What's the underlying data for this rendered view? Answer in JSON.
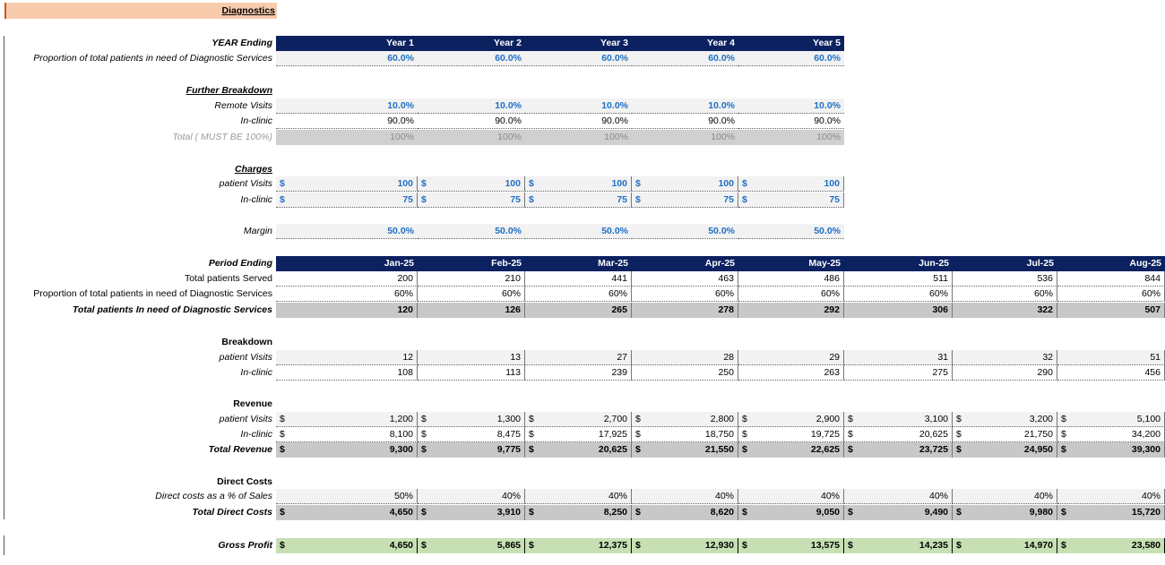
{
  "title": "Diagnostics",
  "section1": {
    "header_label": "YEAR Ending",
    "years": [
      "Year 1",
      "Year 2",
      "Year 3",
      "Year 4",
      "Year 5"
    ],
    "proportion_label": "Proportion of total patients in need of Diagnostic Services",
    "proportion": [
      "60.0%",
      "60.0%",
      "60.0%",
      "60.0%",
      "60.0%"
    ],
    "further_label": "Further Breakdown",
    "remote_label": "Remote Visits",
    "remote": [
      "10.0%",
      "10.0%",
      "10.0%",
      "10.0%",
      "10.0%"
    ],
    "inclinic_label": "In-clinic",
    "inclinic": [
      "90.0%",
      "90.0%",
      "90.0%",
      "90.0%",
      "90.0%"
    ],
    "total_label": "Total ( MUST BE 100%)",
    "total": [
      "100%",
      "100%",
      "100%",
      "100%",
      "100%"
    ],
    "charges_label": "Charges",
    "charges_patient_label": "patient Visits",
    "charges_patient": [
      "100",
      "100",
      "100",
      "100",
      "100"
    ],
    "charges_inclinic_label": "In-clinic",
    "charges_inclinic": [
      "75",
      "75",
      "75",
      "75",
      "75"
    ],
    "margin_label": "Margin",
    "margin": [
      "50.0%",
      "50.0%",
      "50.0%",
      "50.0%",
      "50.0%"
    ]
  },
  "section2": {
    "header_label": "Period Ending",
    "months": [
      "Jan-25",
      "Feb-25",
      "Mar-25",
      "Apr-25",
      "May-25",
      "Jun-25",
      "Jul-25",
      "Aug-25"
    ],
    "served_label": "Total patients Served",
    "served": [
      "200",
      "210",
      "441",
      "463",
      "486",
      "511",
      "536",
      "844"
    ],
    "prop_label": "Proportion of total patients in need of Diagnostic Services",
    "prop": [
      "60%",
      "60%",
      "60%",
      "60%",
      "60%",
      "60%",
      "60%",
      "60%"
    ],
    "need_label": "Total patients In need of Diagnostic Services",
    "need": [
      "120",
      "126",
      "265",
      "278",
      "292",
      "306",
      "322",
      "507"
    ],
    "breakdown_label": "Breakdown",
    "bd_patient_label": "patient Visits",
    "bd_patient": [
      "12",
      "13",
      "27",
      "28",
      "29",
      "31",
      "32",
      "51"
    ],
    "bd_inclinic_label": "In-clinic",
    "bd_inclinic": [
      "108",
      "113",
      "239",
      "250",
      "263",
      "275",
      "290",
      "456"
    ],
    "revenue_label": "Revenue",
    "rev_patient_label": "patient Visits",
    "rev_patient": [
      "1,200",
      "1,300",
      "2,700",
      "2,800",
      "2,900",
      "3,100",
      "3,200",
      "5,100"
    ],
    "rev_inclinic_label": "In-clinic",
    "rev_inclinic": [
      "8,100",
      "8,475",
      "17,925",
      "18,750",
      "19,725",
      "20,625",
      "21,750",
      "34,200"
    ],
    "rev_total_label": "Total Revenue",
    "rev_total": [
      "9,300",
      "9,775",
      "20,625",
      "21,550",
      "22,625",
      "23,725",
      "24,950",
      "39,300"
    ],
    "dc_label": "Direct Costs",
    "dc_pct_label": "Direct costs as a % of Sales",
    "dc_pct": [
      "50%",
      "40%",
      "40%",
      "40%",
      "40%",
      "40%",
      "40%",
      "40%"
    ],
    "dc_total_label": "Total Direct Costs",
    "dc_total": [
      "4,650",
      "3,910",
      "8,250",
      "8,620",
      "9,050",
      "9,490",
      "9,980",
      "15,720"
    ],
    "gp_label": "Gross Profit",
    "gp": [
      "4,650",
      "5,865",
      "12,375",
      "12,930",
      "13,575",
      "14,235",
      "14,970",
      "23,580"
    ]
  },
  "currency_symbol": "$",
  "colors": {
    "header_bg": "#0b2160",
    "input_blue": "#1f6fc5",
    "title_bg": "#f8cbad",
    "gross_profit_bg": "#c6e0b4",
    "total_row_bg": "#c8c8c8",
    "row_bg": "#f2f2f2"
  }
}
